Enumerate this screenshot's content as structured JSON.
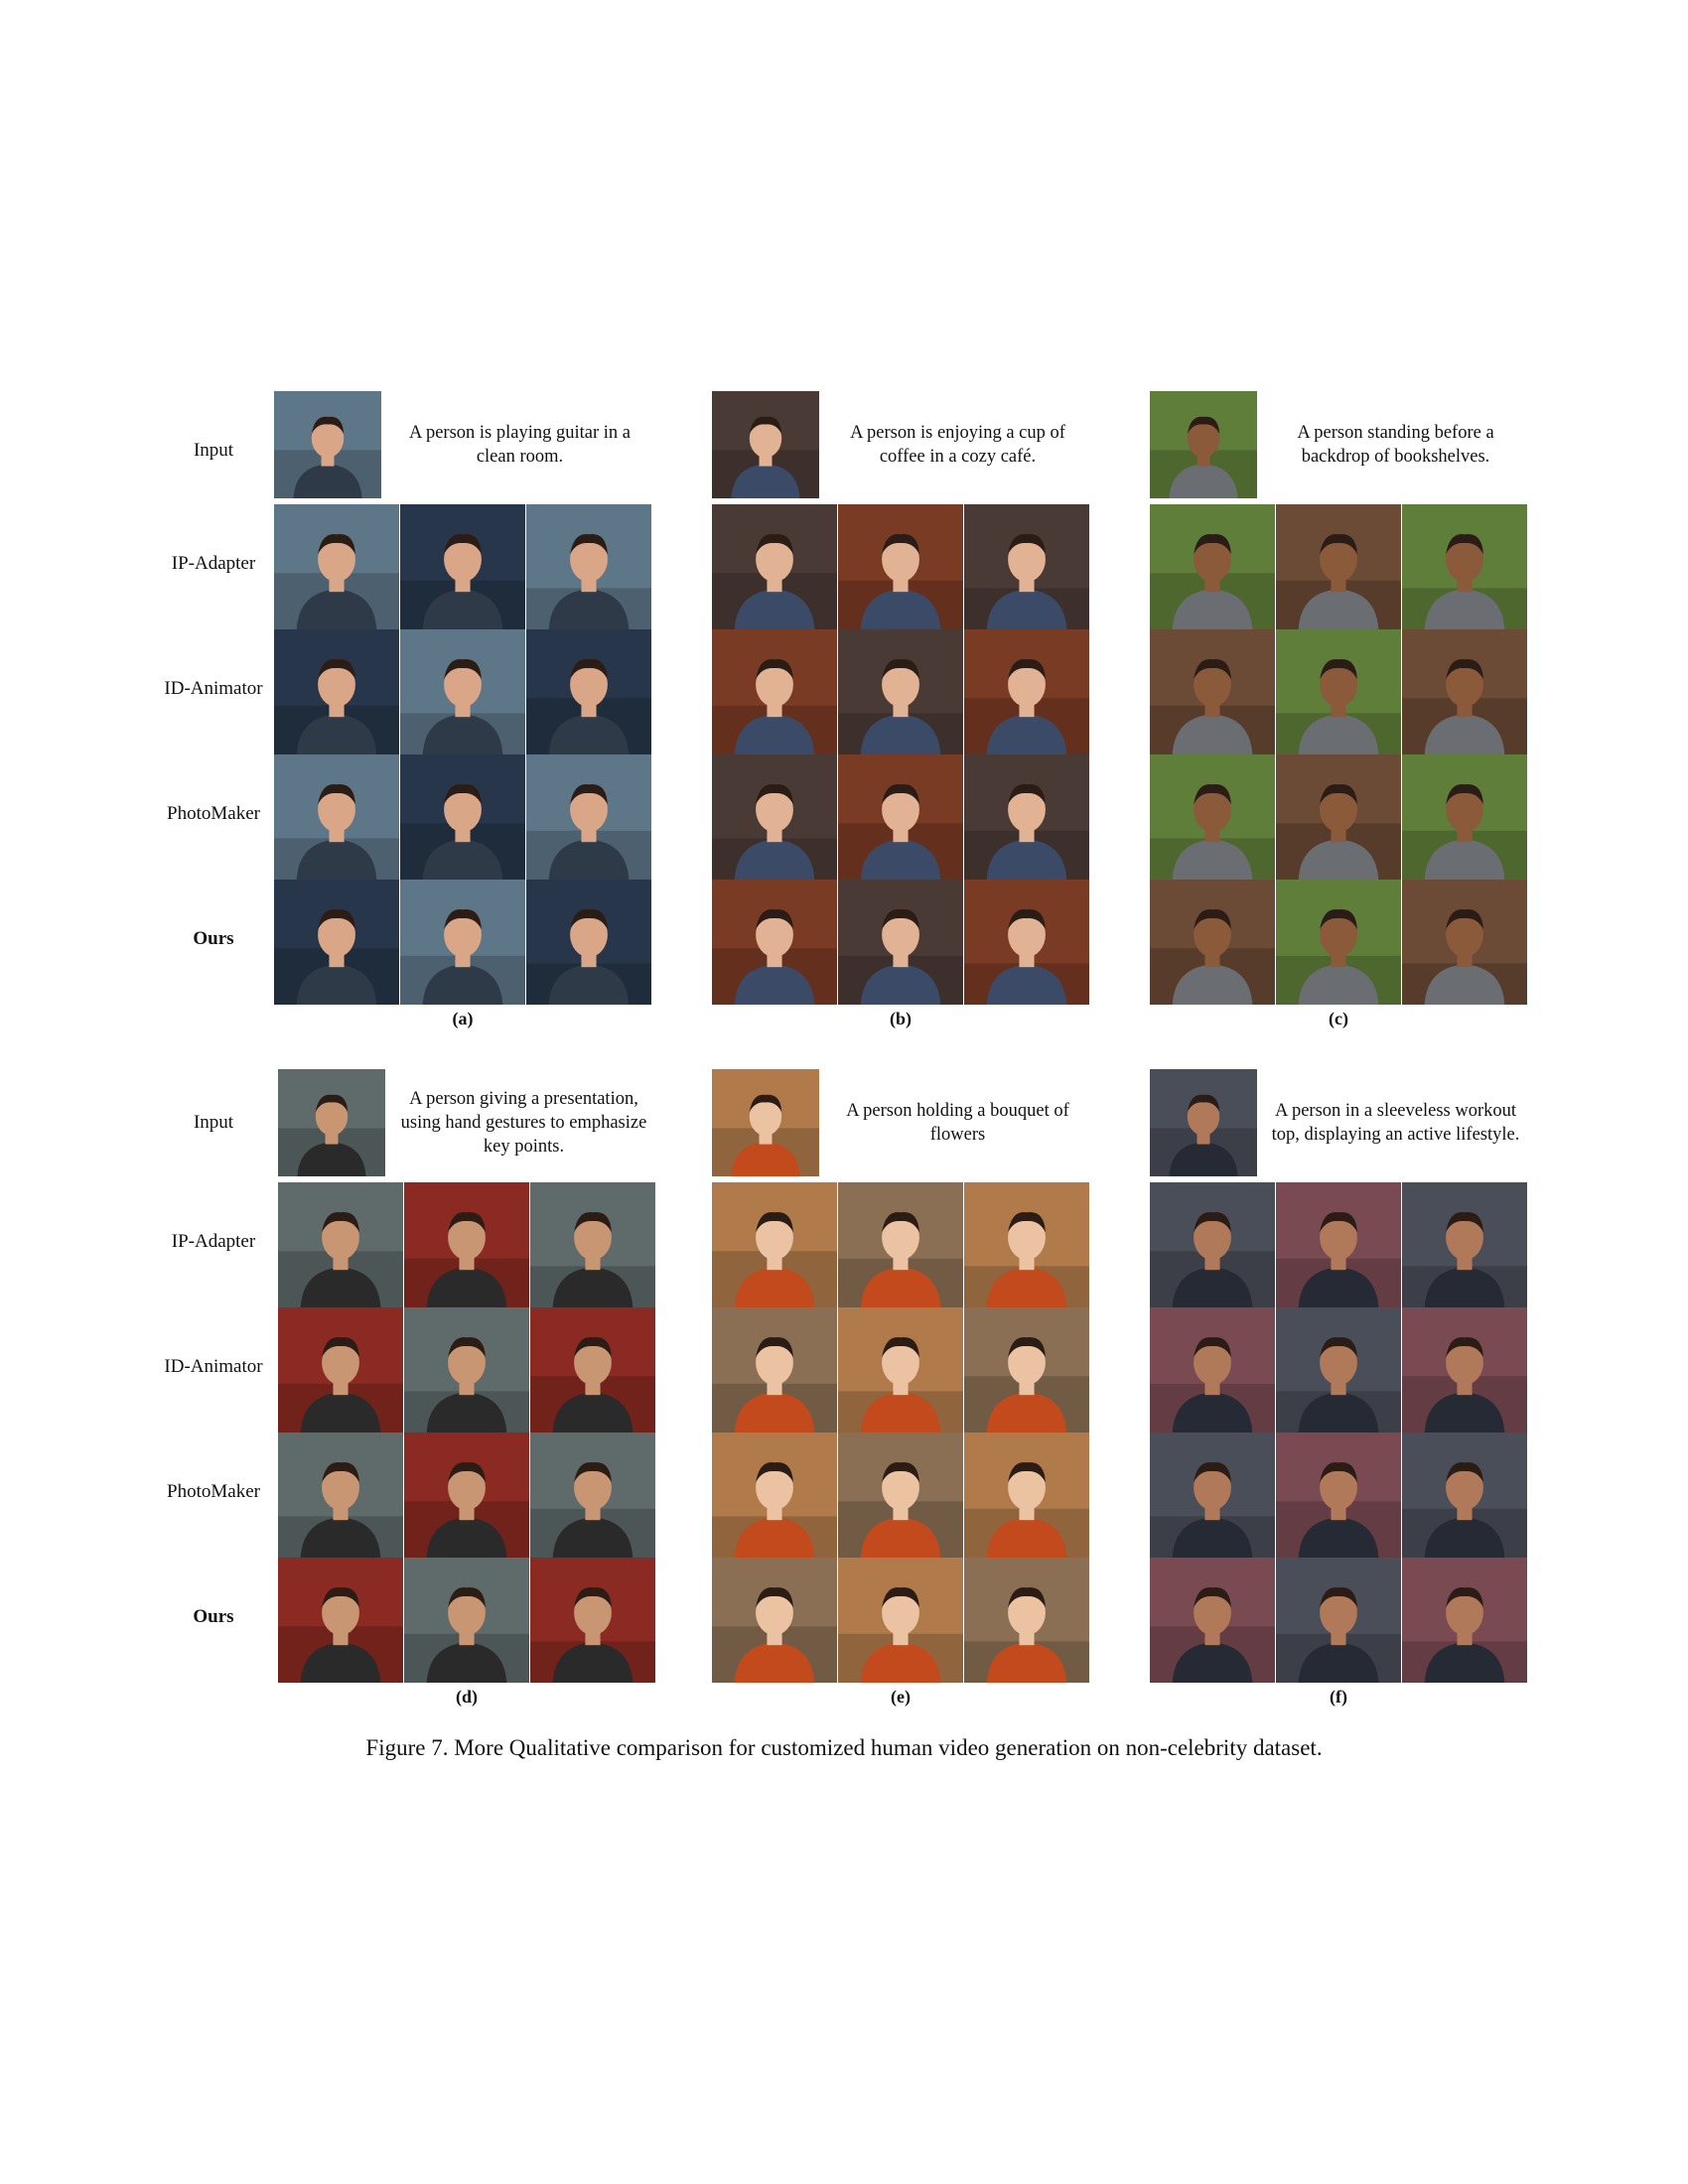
{
  "row_labels": {
    "input": "Input",
    "ip_adapter": "IP-Adapter",
    "id_animator": "ID-Animator",
    "photomaker": "PhotoMaker",
    "ours": "Ours"
  },
  "panels": [
    {
      "tag": "(a)",
      "prompt": "A person is playing guitar in a clean room."
    },
    {
      "tag": "(b)",
      "prompt": "A person is enjoying a cup of coffee in a cozy café."
    },
    {
      "tag": "(c)",
      "prompt": "A person standing before a backdrop of bookshelves."
    },
    {
      "tag": "(d)",
      "prompt": "A person giving a presentation, using hand gestures to emphasize key points."
    },
    {
      "tag": "(e)",
      "prompt": "A person holding a bouquet of flowers"
    },
    {
      "tag": "(f)",
      "prompt": "A person in a sleeveless workout top, displaying an active lifestyle."
    }
  ],
  "caption": "Figure 7. More Qualitative comparison for customized human video generation on non-celebrity dataset.",
  "colors": {
    "a": {
      "bg": "#5d7688",
      "alt": "#27364a",
      "skin": "#d9a788",
      "shirt": "#2f3a48"
    },
    "b": {
      "bg": "#4a3a36",
      "alt": "#7a3b24",
      "skin": "#e2b294",
      "shirt": "#3b4a66"
    },
    "c": {
      "bg": "#5e7e3a",
      "alt": "#6b4a36",
      "skin": "#8a5a3a",
      "shirt": "#6a6e72"
    },
    "d": {
      "bg": "#5f6a6a",
      "alt": "#8a2a22",
      "skin": "#c99674",
      "shirt": "#2a2a2a"
    },
    "e": {
      "bg": "#b07a4a",
      "alt": "#8a6f55",
      "skin": "#ebc3a3",
      "shirt": "#c24a1c"
    },
    "f": {
      "bg": "#4a4e58",
      "alt": "#7a4a52",
      "skin": "#b07a5a",
      "shirt": "#262a34"
    }
  }
}
